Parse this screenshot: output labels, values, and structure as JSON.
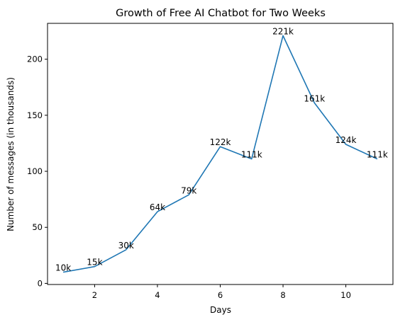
{
  "chart_data": {
    "type": "line",
    "title": "Growth of Free AI Chatbot for Two Weeks",
    "xlabel": "Days",
    "ylabel": "Number of messages (in thousands)",
    "xlim": [
      0.5,
      11.5
    ],
    "ylim": [
      -1,
      232
    ],
    "xticks": [
      2,
      4,
      6,
      8,
      10
    ],
    "yticks": [
      0,
      50,
      100,
      150,
      200
    ],
    "grid": false,
    "line_color": "#1f77b4",
    "x": [
      1,
      2,
      3,
      4,
      5,
      6,
      7,
      8,
      9,
      10,
      11
    ],
    "values": [
      10,
      15,
      30,
      64,
      79,
      122,
      111,
      221,
      161,
      124,
      111
    ],
    "data_labels": [
      "10k",
      "15k",
      "30k",
      "64k",
      "79k",
      "122k",
      "111k",
      "221k",
      "161k",
      "124k",
      "111k"
    ]
  }
}
